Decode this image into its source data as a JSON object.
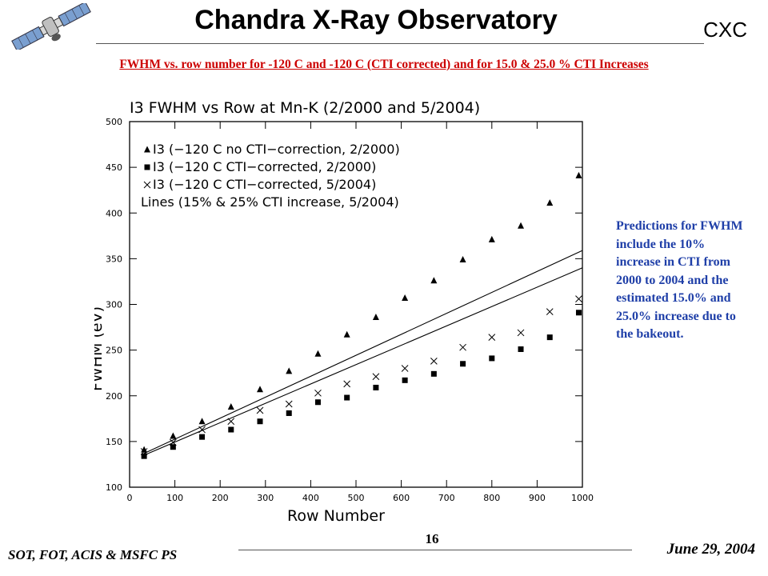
{
  "header": {
    "title": "Chandra X-Ray Observatory",
    "org": "CXC",
    "subtitle": "FWHM vs. row number for -120 C and -120 C (CTI corrected) and for 15.0 & 25.0 % CTI Increases",
    "logo_icon": "chandra-satellite-icon"
  },
  "side_note": "Predictions for FWHM include the 10% increase in CTI from 2000 to 2004 and the estimated 15.0% and 25.0% increase due to the bakeout.",
  "footer": {
    "left": "SOT, FOT, ACIS & MSFC PS",
    "page": "16",
    "date": "June 29, 2004"
  },
  "colors": {
    "subtitle": "#cc0000",
    "note": "#1f3fa8"
  },
  "chart_data": {
    "type": "scatter",
    "title": "I3 FWHM vs Row at Mn-K (2/2000 and 5/2004)",
    "xlabel": "Row Number",
    "ylabel": "FWHM (eV)",
    "xlim": [
      0,
      1000
    ],
    "ylim": [
      100,
      500
    ],
    "xticks": [
      0,
      100,
      200,
      300,
      400,
      500,
      600,
      700,
      800,
      900,
      1000
    ],
    "yticks": [
      100,
      150,
      200,
      250,
      300,
      350,
      400,
      450,
      500
    ],
    "grid": false,
    "legend_position": "top-left",
    "series": [
      {
        "name": "I3 (−120 C no CTI−correction, 2/2000)",
        "marker": "triangle",
        "x": [
          32,
          96,
          160,
          224,
          288,
          352,
          416,
          480,
          544,
          608,
          672,
          736,
          800,
          864,
          928,
          992
        ],
        "y": [
          141,
          156,
          172,
          188,
          207,
          227,
          246,
          267,
          286,
          307,
          326,
          349,
          371,
          386,
          411,
          441
        ]
      },
      {
        "name": "I3 (−120 C CTI−corrected, 2/2000)",
        "marker": "square",
        "x": [
          32,
          96,
          160,
          224,
          288,
          352,
          416,
          480,
          544,
          608,
          672,
          736,
          800,
          864,
          928,
          992
        ],
        "y": [
          134,
          144,
          155,
          163,
          172,
          181,
          193,
          198,
          209,
          217,
          224,
          235,
          241,
          251,
          264,
          291
        ]
      },
      {
        "name": "I3 (−120 C CTI−corrected, 5/2004)",
        "marker": "cross",
        "x": [
          32,
          96,
          160,
          224,
          288,
          352,
          416,
          480,
          544,
          608,
          672,
          736,
          800,
          864,
          928,
          992
        ],
        "y": [
          139,
          149,
          163,
          172,
          184,
          191,
          203,
          213,
          221,
          230,
          238,
          253,
          264,
          269,
          292,
          306
        ]
      },
      {
        "name": "Lines (15% & 25% CTI increase, 5/2004)",
        "marker": "line",
        "lines": [
          {
            "x": [
              32,
              1000
            ],
            "y": [
              137,
              359
            ]
          },
          {
            "x": [
              32,
              1000
            ],
            "y": [
              135,
              340
            ]
          }
        ]
      }
    ]
  }
}
